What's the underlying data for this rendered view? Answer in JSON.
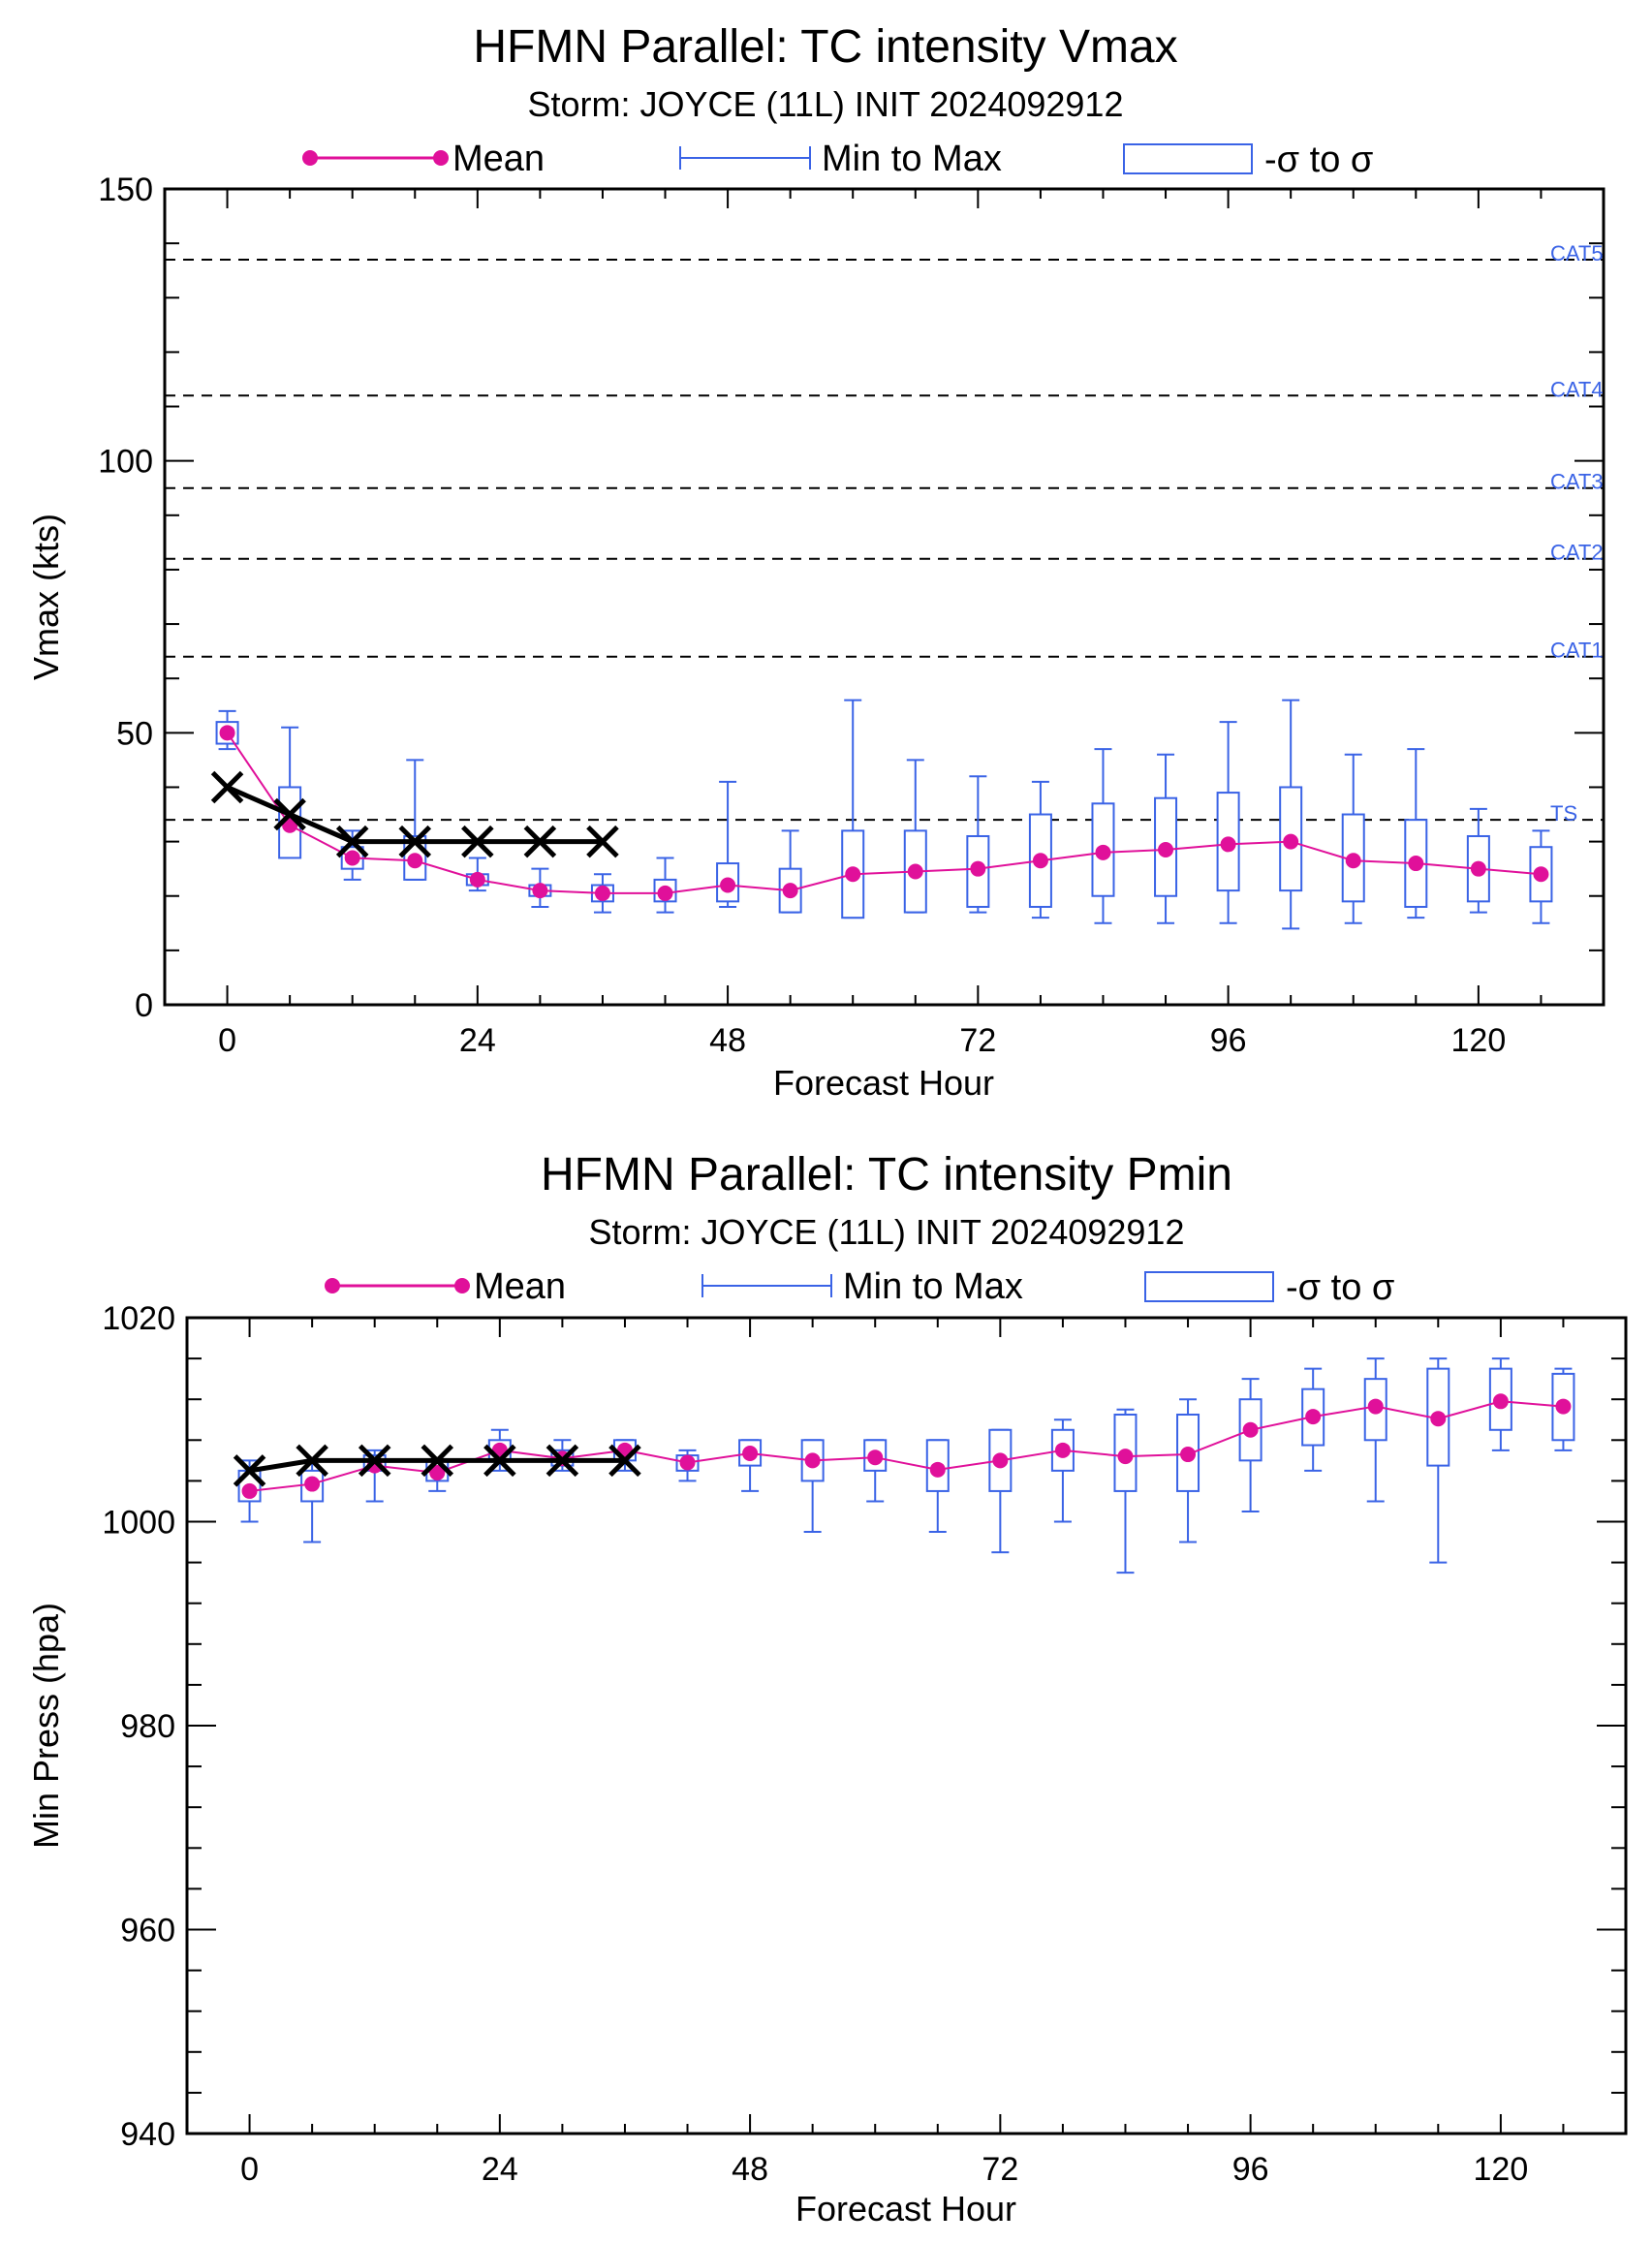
{
  "colors": {
    "mean": "#e0109a",
    "range": "#3a63e6",
    "obs": "#000000",
    "threshold": "#000000",
    "threshold_label": "#3a63e6"
  },
  "legend": {
    "mean": "Mean",
    "range": "Min to Max",
    "sigma": "-σ to σ"
  },
  "chart_data": [
    {
      "type": "box",
      "title": "HFMN Parallel: TC intensity Vmax",
      "subtitle": "Storm: JOYCE (11L) INIT 2024092912",
      "xlabel": "Forecast Hour",
      "ylabel": "Vmax (kts)",
      "xlim": [
        -6,
        132
      ],
      "ylim": [
        0,
        150
      ],
      "xticks": [
        0,
        24,
        48,
        72,
        96,
        120
      ],
      "yticks": [
        0,
        50,
        100,
        150
      ],
      "thresholds": [
        {
          "label": "TS",
          "value": 34
        },
        {
          "label": "CAT1",
          "value": 64
        },
        {
          "label": "CAT2",
          "value": 82
        },
        {
          "label": "CAT3",
          "value": 95
        },
        {
          "label": "CAT4",
          "value": 112
        },
        {
          "label": "CAT5",
          "value": 137
        }
      ],
      "x": [
        0,
        6,
        12,
        18,
        24,
        30,
        36,
        42,
        48,
        54,
        60,
        66,
        72,
        78,
        84,
        90,
        96,
        102,
        108,
        114,
        120,
        126
      ],
      "mean": [
        50,
        33,
        27,
        26.5,
        23,
        21,
        20.5,
        20.5,
        22,
        21,
        24,
        24.5,
        25,
        26.5,
        28,
        28.5,
        29.5,
        30,
        26.5,
        26,
        25,
        24
      ],
      "min": [
        47,
        28,
        23,
        23,
        21,
        18,
        17,
        17,
        18,
        17,
        16,
        17,
        17,
        16,
        15,
        15,
        15,
        14,
        15,
        16,
        17,
        15
      ],
      "max": [
        54,
        51,
        32,
        45,
        27,
        25,
        24,
        27,
        41,
        32,
        56,
        45,
        42,
        41,
        47,
        46,
        52,
        56,
        46,
        47,
        36,
        32
      ],
      "sig_lo": [
        48,
        27,
        25,
        23,
        22,
        20,
        19,
        19,
        19,
        17,
        16,
        17,
        18,
        18,
        20,
        20,
        21,
        21,
        19,
        18,
        19,
        19
      ],
      "sig_hi": [
        52,
        40,
        29,
        31,
        24,
        22,
        22,
        23,
        26,
        25,
        32,
        32,
        31,
        35,
        37,
        38,
        39,
        40,
        35,
        34,
        31,
        29
      ],
      "observed_x": [
        0,
        6,
        12,
        18,
        24,
        30,
        36
      ],
      "observed": [
        40,
        35,
        30,
        30,
        30,
        30,
        30
      ]
    },
    {
      "type": "box",
      "title": "HFMN Parallel: TC intensity Pmin",
      "subtitle": "Storm: JOYCE (11L) INIT 2024092912",
      "xlabel": "Forecast Hour",
      "ylabel": "Min Press (hpa)",
      "xlim": [
        -6,
        132
      ],
      "ylim": [
        940,
        1020
      ],
      "xticks": [
        0,
        24,
        48,
        72,
        96,
        120
      ],
      "yticks": [
        940,
        960,
        980,
        1000,
        1020
      ],
      "thresholds": [],
      "x": [
        0,
        6,
        12,
        18,
        24,
        30,
        36,
        42,
        48,
        54,
        60,
        66,
        72,
        78,
        84,
        90,
        96,
        102,
        108,
        114,
        120,
        126
      ],
      "mean": [
        1003,
        1003.7,
        1005.5,
        1004.8,
        1007,
        1006.2,
        1007,
        1005.8,
        1006.7,
        1006,
        1006.3,
        1005.1,
        1006,
        1007,
        1006.4,
        1006.6,
        1009,
        1010.3,
        1011.3,
        1010.1,
        1011.8,
        1011.3
      ],
      "min": [
        1000,
        998,
        1002,
        1003,
        1005,
        1005,
        1005,
        1004,
        1003,
        999,
        1002,
        999,
        997,
        1000,
        995,
        998,
        1001,
        1005,
        1002,
        996,
        1007,
        1007
      ],
      "max": [
        1006,
        1006,
        1007,
        1006,
        1009,
        1008,
        1008,
        1007,
        1008,
        1008,
        1008,
        1008,
        1009,
        1010,
        1011,
        1012,
        1014,
        1015,
        1016,
        1016,
        1016,
        1015
      ],
      "sig_lo": [
        1002,
        1002,
        1005,
        1004,
        1006,
        1005.5,
        1006,
        1005,
        1005.5,
        1004,
        1005,
        1003,
        1003,
        1005,
        1003,
        1003,
        1006,
        1007.5,
        1008,
        1005.5,
        1009,
        1008
      ],
      "sig_hi": [
        1005,
        1005,
        1006.5,
        1006,
        1008,
        1007,
        1008,
        1006.5,
        1008,
        1008,
        1008,
        1008,
        1009,
        1009,
        1010.5,
        1010.5,
        1012,
        1013,
        1014,
        1015,
        1015,
        1014.5
      ],
      "observed_x": [
        0,
        6,
        12,
        18,
        24,
        30,
        36
      ],
      "observed": [
        1005,
        1006,
        1006,
        1006,
        1006,
        1006,
        1006
      ]
    }
  ]
}
